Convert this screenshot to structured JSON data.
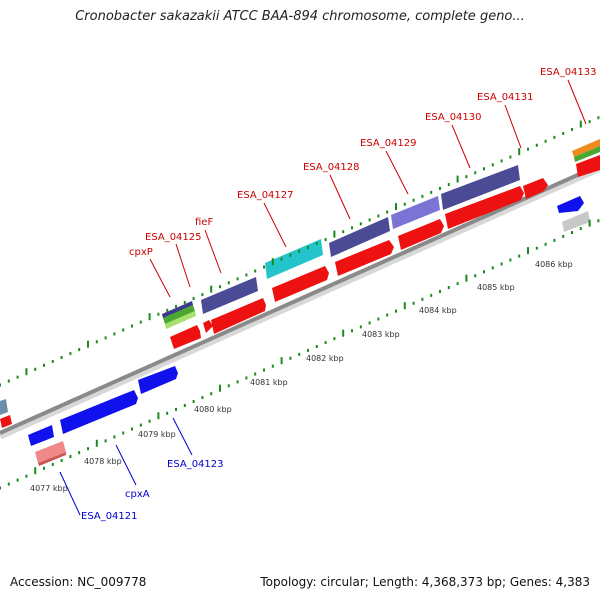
{
  "title": "Cronobacter sakazakii ATCC BAA-894 chromosome, complete geno...",
  "footer": {
    "accession": "Accession: NC_009778",
    "topology": "Topology: circular; Length: 4,368,373 bp; Genes: 4,383"
  },
  "colors": {
    "forward_label": "#cc0000",
    "reverse_label": "#0000cc",
    "tick_green": "#1a8a1a",
    "backbone": "#808080"
  },
  "scale_labels": [
    "4077 kbp",
    "4078 kbp",
    "4079 kbp",
    "4080 kbp",
    "4081 kbp",
    "4082 kbp",
    "4083 kbp",
    "4084 kbp",
    "4085 kbp",
    "4086 kbp"
  ],
  "forward_genes": [
    {
      "label": "cpxP",
      "color": "#cc0000"
    },
    {
      "label": "ESA_04125",
      "color": "#cc0000"
    },
    {
      "label": "fieF",
      "color": "#cc0000"
    },
    {
      "label": "ESA_04127",
      "color": "#cc0000"
    },
    {
      "label": "ESA_04128",
      "color": "#cc0000"
    },
    {
      "label": "ESA_04129",
      "color": "#cc0000"
    },
    {
      "label": "ESA_04130",
      "color": "#cc0000"
    },
    {
      "label": "ESA_04131",
      "color": "#cc0000"
    },
    {
      "label": "ESA_04133",
      "color": "#cc0000"
    }
  ],
  "reverse_genes": [
    {
      "label": "ESA_04121",
      "color": "#0000cc"
    },
    {
      "label": "cpxA",
      "color": "#0000cc"
    },
    {
      "label": "ESA_04123",
      "color": "#0000cc"
    }
  ]
}
